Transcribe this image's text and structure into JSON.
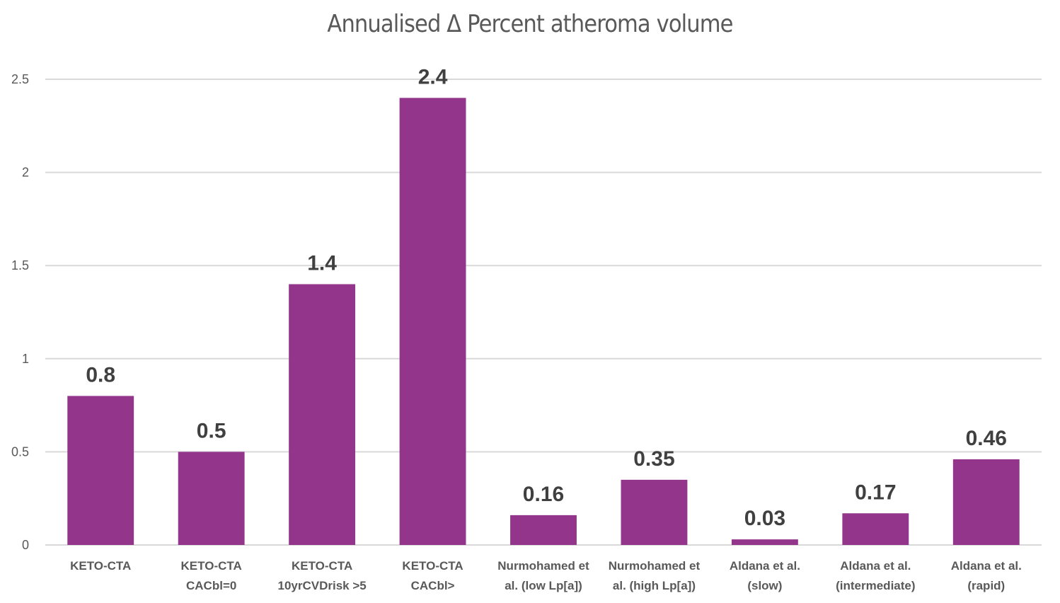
{
  "chart_data": {
    "type": "bar",
    "title": "Annualised Δ Percent atheroma volume",
    "xlabel": "",
    "ylabel": "",
    "ylim": [
      0,
      2.5
    ],
    "yticks": [
      0,
      0.5,
      1,
      1.5,
      2,
      2.5
    ],
    "ytick_labels": [
      "0",
      "0.5",
      "1",
      "1.5",
      "2",
      "2.5"
    ],
    "grid": true,
    "legend": "none",
    "bar_color": "#93358A",
    "categories": [
      [
        "KETO-CTA"
      ],
      [
        "KETO-CTA",
        "CACbl=0"
      ],
      [
        "KETO-CTA",
        "10yrCVDrisk >5"
      ],
      [
        "KETO-CTA",
        "CACbl>"
      ],
      [
        "Nurmohamed et",
        "al. (low Lp[a])"
      ],
      [
        "Nurmohamed et",
        "al. (high Lp[a])"
      ],
      [
        "Aldana et al.",
        "(slow)"
      ],
      [
        "Aldana et al.",
        "(intermediate)"
      ],
      [
        "Aldana et al.",
        "(rapid)"
      ]
    ],
    "values": [
      0.8,
      0.5,
      1.4,
      2.4,
      0.16,
      0.35,
      0.03,
      0.17,
      0.46
    ],
    "data_labels": [
      "0.8",
      "0.5",
      "1.4",
      "2.4",
      "0.16",
      "0.35",
      "0.03",
      "0.17",
      "0.46"
    ]
  }
}
